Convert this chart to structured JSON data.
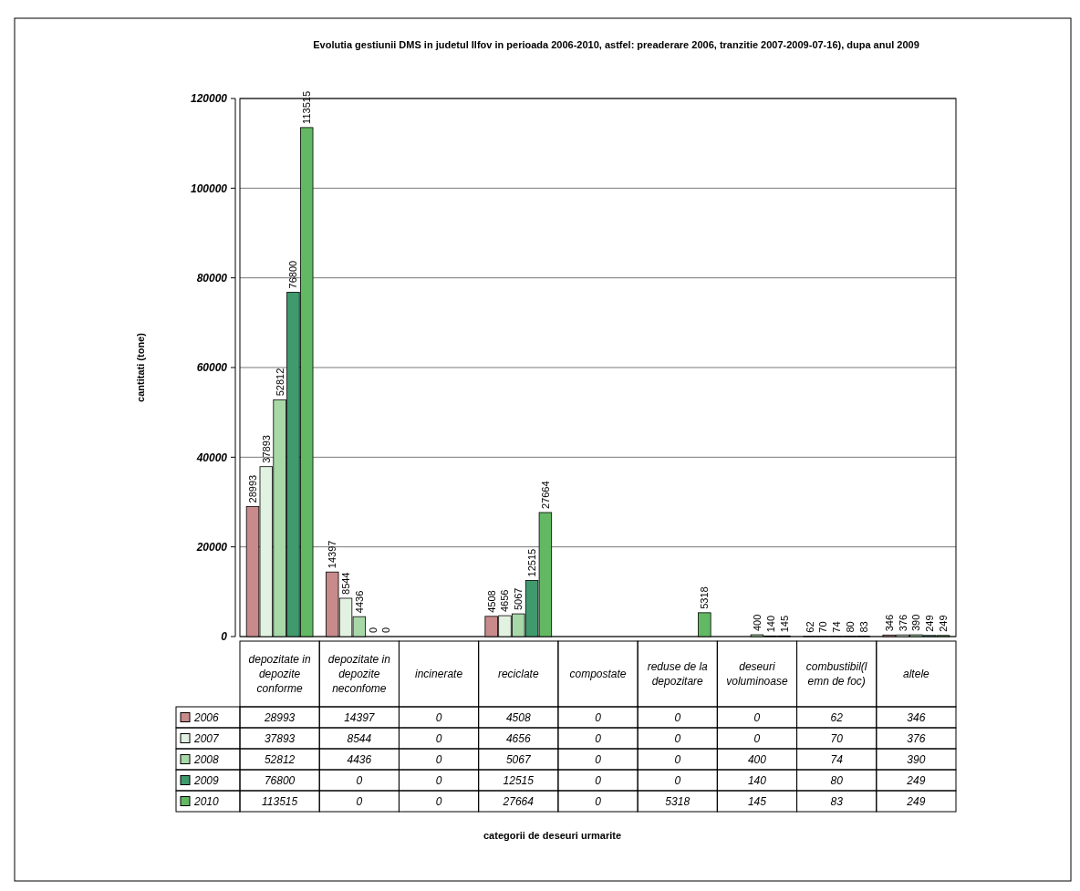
{
  "chart_data": {
    "type": "bar",
    "title": "Evolutia gestiunii DMS in judetul Ilfov in perioada 2006-2010, astfel: preaderare 2006, tranzitie 2007-2009-07-16), dupa anul 2009",
    "ylabel": "cantitati (tone)",
    "categories": [
      "depozitate in depozite conforme",
      "depozitate in depozite neconfome",
      "incinerate",
      "reciclate",
      "compostate",
      "reduse de la depozitare",
      "deseuri voluminoase",
      "combustibil(lemn de foc)",
      "altele"
    ],
    "series": [
      {
        "name": "2006",
        "color": "#c88a8a",
        "values": [
          28993,
          14397,
          0,
          4508,
          0,
          0,
          0,
          62,
          346
        ],
        "value_labels": [
          "28993",
          "14397",
          null,
          "4508",
          null,
          null,
          null,
          "62",
          "346"
        ]
      },
      {
        "name": "2007",
        "color": "#e2f2e2",
        "values": [
          37893,
          8544,
          0,
          4656,
          0,
          0,
          0,
          70,
          376
        ],
        "value_labels": [
          "37893",
          "8544",
          null,
          "4656",
          null,
          null,
          null,
          "70",
          "376"
        ]
      },
      {
        "name": "2008",
        "color": "#a8d8a8",
        "values": [
          52812,
          4436,
          0,
          5067,
          0,
          0,
          400,
          74,
          390
        ],
        "value_labels": [
          "52812",
          "4436",
          null,
          "5067",
          null,
          null,
          "400",
          "74",
          "390"
        ]
      },
      {
        "name": "2009",
        "color": "#3f9a6e",
        "values": [
          76800,
          0,
          0,
          12515,
          0,
          0,
          140,
          80,
          249
        ],
        "value_labels": [
          "76800",
          "0",
          null,
          "12515",
          null,
          null,
          "140",
          "80",
          "249"
        ]
      },
      {
        "name": "2010",
        "color": "#63b863",
        "values": [
          113515,
          0,
          0,
          27664,
          0,
          5318,
          145,
          83,
          249
        ],
        "value_labels": [
          "113515",
          "0",
          null,
          "27664",
          null,
          "5318",
          "145",
          "83",
          "249"
        ]
      }
    ],
    "annotations": [
      "categorii de deseuri urmarite"
    ],
    "ylim": [
      0,
      120000
    ],
    "yticks": [
      0,
      20000,
      40000,
      60000,
      80000,
      100000,
      120000
    ],
    "grid": "y",
    "legend": "bottom",
    "data_labels": true
  }
}
